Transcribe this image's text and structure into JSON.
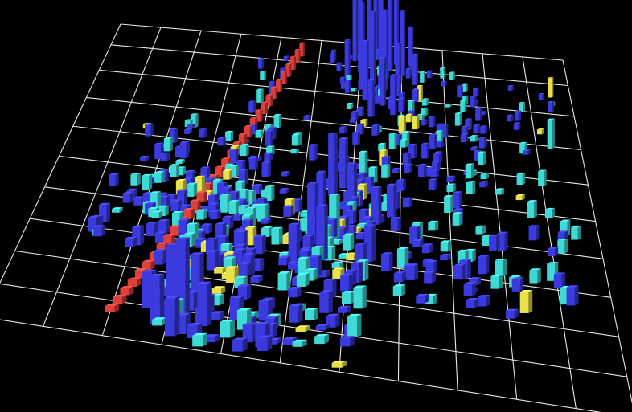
{
  "chart_data": {
    "type": "bar3d",
    "title": "",
    "xlabel": "",
    "ylabel": "",
    "zlabel": "",
    "grid": true,
    "colors": {
      "background": "#000000",
      "grid": "#e8e8e8",
      "floor_edge": "#ffffff",
      "low": "#3a3adf",
      "mid": "#3fd9d6",
      "high": "#e8e14a",
      "peak": "#e0403a"
    },
    "color_levels": [
      {
        "name": "low",
        "max": 0.45
      },
      {
        "name": "mid",
        "max": 0.75
      },
      {
        "name": "high",
        "max": 0.92
      },
      {
        "name": "peak",
        "max": 1.0
      }
    ],
    "domain": {
      "u": [
        0,
        11
      ],
      "v": [
        0,
        7.5
      ]
    },
    "value_scale": 1.0,
    "scatter": {
      "seed": 17,
      "count": 520
    },
    "bars": [
      {
        "u": 2.0,
        "v": 0.5,
        "h": 0.12,
        "c": "peak"
      },
      {
        "u": 2.08,
        "v": 0.7,
        "h": 0.13,
        "c": "peak"
      },
      {
        "u": 2.16,
        "v": 0.9,
        "h": 0.14,
        "c": "peak"
      },
      {
        "u": 2.24,
        "v": 1.1,
        "h": 0.14,
        "c": "peak"
      },
      {
        "u": 2.32,
        "v": 1.3,
        "h": 0.16,
        "c": "peak"
      },
      {
        "u": 2.4,
        "v": 1.5,
        "h": 0.16,
        "c": "peak"
      },
      {
        "u": 2.48,
        "v": 1.7,
        "h": 0.17,
        "c": "peak"
      },
      {
        "u": 2.56,
        "v": 1.9,
        "h": 0.18,
        "c": "peak"
      },
      {
        "u": 2.64,
        "v": 2.1,
        "h": 0.19,
        "c": "peak"
      },
      {
        "u": 2.72,
        "v": 2.3,
        "h": 0.2,
        "c": "peak"
      },
      {
        "u": 2.8,
        "v": 2.5,
        "h": 0.21,
        "c": "peak"
      },
      {
        "u": 2.88,
        "v": 2.7,
        "h": 0.22,
        "c": "peak"
      },
      {
        "u": 2.96,
        "v": 2.9,
        "h": 0.23,
        "c": "peak"
      },
      {
        "u": 3.04,
        "v": 3.1,
        "h": 0.24,
        "c": "peak"
      },
      {
        "u": 3.12,
        "v": 3.3,
        "h": 0.25,
        "c": "peak"
      },
      {
        "u": 3.2,
        "v": 3.5,
        "h": 0.26,
        "c": "peak"
      },
      {
        "u": 3.28,
        "v": 3.7,
        "h": 0.27,
        "c": "peak"
      },
      {
        "u": 3.36,
        "v": 3.9,
        "h": 0.28,
        "c": "peak"
      },
      {
        "u": 3.44,
        "v": 4.1,
        "h": 0.29,
        "c": "peak"
      },
      {
        "u": 3.52,
        "v": 4.3,
        "h": 0.3,
        "c": "peak"
      },
      {
        "u": 3.6,
        "v": 4.5,
        "h": 0.31,
        "c": "peak"
      },
      {
        "u": 3.68,
        "v": 4.7,
        "h": 0.32,
        "c": "peak"
      },
      {
        "u": 3.76,
        "v": 4.9,
        "h": 0.33,
        "c": "peak"
      },
      {
        "u": 3.84,
        "v": 5.1,
        "h": 0.34,
        "c": "peak"
      },
      {
        "u": 3.92,
        "v": 5.3,
        "h": 0.35,
        "c": "peak"
      },
      {
        "u": 4.0,
        "v": 5.5,
        "h": 0.36,
        "c": "peak"
      },
      {
        "u": 4.08,
        "v": 5.7,
        "h": 0.38,
        "c": "peak"
      },
      {
        "u": 4.16,
        "v": 5.9,
        "h": 0.4,
        "c": "peak"
      },
      {
        "u": 4.24,
        "v": 6.1,
        "h": 0.42,
        "c": "peak"
      },
      {
        "u": 4.32,
        "v": 6.3,
        "h": 0.45,
        "c": "peak"
      },
      {
        "u": 4.4,
        "v": 6.5,
        "h": 0.48,
        "c": "peak"
      },
      {
        "u": 4.48,
        "v": 6.7,
        "h": 0.5,
        "c": "peak"
      },
      {
        "u": 4.56,
        "v": 6.9,
        "h": 0.52,
        "c": "peak"
      },
      {
        "u": 6.0,
        "v": 6.6,
        "h": 3.8,
        "c": "low"
      },
      {
        "u": 6.2,
        "v": 6.8,
        "h": 4.6,
        "c": "low"
      },
      {
        "u": 6.35,
        "v": 7.0,
        "h": 3.2,
        "c": "low"
      },
      {
        "u": 6.5,
        "v": 6.5,
        "h": 5.0,
        "c": "low"
      },
      {
        "u": 6.7,
        "v": 6.7,
        "h": 4.2,
        "c": "low"
      },
      {
        "u": 6.85,
        "v": 6.9,
        "h": 3.4,
        "c": "low"
      },
      {
        "u": 6.05,
        "v": 6.2,
        "h": 3.0,
        "c": "low"
      },
      {
        "u": 6.3,
        "v": 6.3,
        "h": 2.6,
        "c": "low"
      },
      {
        "u": 6.6,
        "v": 6.2,
        "h": 2.8,
        "c": "low"
      },
      {
        "u": 7.0,
        "v": 6.6,
        "h": 2.4,
        "c": "low"
      },
      {
        "u": 5.85,
        "v": 6.9,
        "h": 2.6,
        "c": "low"
      },
      {
        "u": 6.45,
        "v": 7.2,
        "h": 2.2,
        "c": "low"
      },
      {
        "u": 6.15,
        "v": 5.9,
        "h": 2.0,
        "c": "low"
      },
      {
        "u": 6.9,
        "v": 6.1,
        "h": 1.8,
        "c": "low"
      },
      {
        "u": 6.55,
        "v": 5.8,
        "h": 1.6,
        "c": "low"
      },
      {
        "u": 7.2,
        "v": 6.9,
        "h": 1.5,
        "c": "low"
      },
      {
        "u": 5.7,
        "v": 6.4,
        "h": 1.4,
        "c": "low"
      },
      {
        "u": 6.8,
        "v": 5.6,
        "h": 1.3,
        "c": "low"
      },
      {
        "u": 6.3,
        "v": 5.5,
        "h": 1.2,
        "c": "low"
      },
      {
        "u": 7.3,
        "v": 6.4,
        "h": 1.1,
        "c": "low"
      },
      {
        "u": 5.6,
        "v": 3.6,
        "h": 1.6,
        "c": "low"
      },
      {
        "u": 5.8,
        "v": 3.8,
        "h": 1.3,
        "c": "low"
      },
      {
        "u": 6.0,
        "v": 3.4,
        "h": 1.1,
        "c": "low"
      },
      {
        "u": 5.4,
        "v": 3.2,
        "h": 1.0,
        "c": "low"
      },
      {
        "u": 6.2,
        "v": 3.9,
        "h": 0.9,
        "c": "mid"
      },
      {
        "u": 5.3,
        "v": 2.5,
        "h": 1.4,
        "c": "low"
      },
      {
        "u": 5.5,
        "v": 2.2,
        "h": 1.2,
        "c": "low"
      },
      {
        "u": 5.7,
        "v": 2.7,
        "h": 1.0,
        "c": "mid"
      },
      {
        "u": 6.5,
        "v": 3.1,
        "h": 0.9,
        "c": "low"
      },
      {
        "u": 6.8,
        "v": 3.3,
        "h": 0.8,
        "c": "low"
      },
      {
        "u": 6.4,
        "v": 2.3,
        "h": 0.8,
        "c": "low"
      },
      {
        "u": 5.0,
        "v": 2.0,
        "h": 0.9,
        "c": "low"
      },
      {
        "u": 5.2,
        "v": 1.6,
        "h": 0.25,
        "c": "mid"
      },
      {
        "u": 5.4,
        "v": 2.0,
        "h": 0.27,
        "c": "mid"
      },
      {
        "u": 5.6,
        "v": 2.4,
        "h": 0.3,
        "c": "mid"
      },
      {
        "u": 5.8,
        "v": 2.8,
        "h": 0.32,
        "c": "high"
      },
      {
        "u": 6.0,
        "v": 3.2,
        "h": 0.35,
        "c": "mid"
      },
      {
        "u": 6.2,
        "v": 3.6,
        "h": 0.38,
        "c": "high"
      },
      {
        "u": 6.4,
        "v": 4.0,
        "h": 0.4,
        "c": "mid"
      },
      {
        "u": 6.6,
        "v": 4.4,
        "h": 0.42,
        "c": "high"
      },
      {
        "u": 6.8,
        "v": 4.8,
        "h": 0.45,
        "c": "mid"
      },
      {
        "u": 7.0,
        "v": 5.2,
        "h": 0.48,
        "c": "high"
      },
      {
        "u": 7.2,
        "v": 5.6,
        "h": 0.5,
        "c": "mid"
      },
      {
        "u": 7.4,
        "v": 6.0,
        "h": 0.52,
        "c": "high"
      },
      {
        "u": 3.0,
        "v": 0.8,
        "h": 1.2,
        "c": "low"
      },
      {
        "u": 3.2,
        "v": 0.6,
        "h": 1.5,
        "c": "low"
      },
      {
        "u": 3.4,
        "v": 0.9,
        "h": 1.0,
        "c": "low"
      },
      {
        "u": 2.8,
        "v": 0.4,
        "h": 0.9,
        "c": "low"
      },
      {
        "u": 3.6,
        "v": 0.5,
        "h": 0.8,
        "c": "low"
      },
      {
        "u": 3.1,
        "v": 0.2,
        "h": 0.7,
        "c": "low"
      },
      {
        "u": 2.6,
        "v": 0.7,
        "h": 0.7,
        "c": "low"
      },
      {
        "u": 10.3,
        "v": 5.2,
        "h": 0.9,
        "c": "mid"
      },
      {
        "u": 10.5,
        "v": 6.4,
        "h": 0.7,
        "c": "high"
      },
      {
        "u": 9.3,
        "v": 1.7,
        "h": 0.45,
        "c": "high"
      }
    ]
  }
}
